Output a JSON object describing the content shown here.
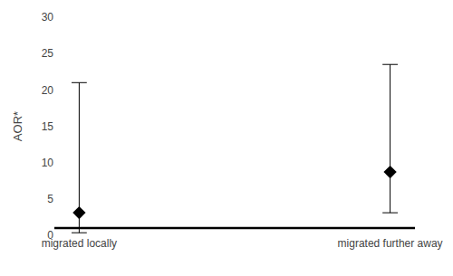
{
  "chart_data": {
    "type": "scatter",
    "ylabel": "AOR*",
    "categories": [
      "migrated locally",
      "migrated further away"
    ],
    "values": [
      3.1,
      8.7
    ],
    "ci_lower": [
      0.35,
      3.1
    ],
    "ci_upper": [
      21.0,
      23.5
    ],
    "reference_line": 1,
    "ylim": [
      0,
      30
    ],
    "yticks": [
      0,
      5,
      10,
      15,
      20,
      25,
      30
    ],
    "color": "#000000",
    "marker": "diamond",
    "grid": false
  }
}
